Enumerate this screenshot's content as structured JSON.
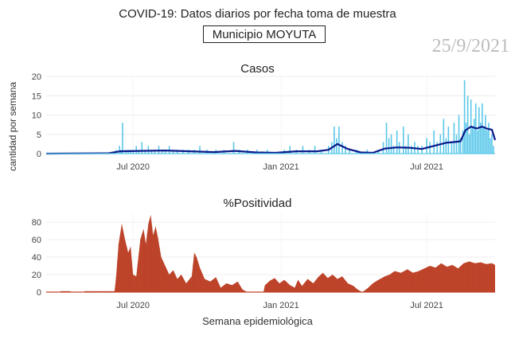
{
  "header": {
    "title": "COVID-19: Datos diarios por fecha toma de muestra",
    "subtitle": "Municipio MOYUTA",
    "date_stamp": "25/9/2021"
  },
  "axes": {
    "ylabel": "cantidad por semana",
    "xlabel": "Semana epidemiológica"
  },
  "colors": {
    "cases_bars": "#5bc8ea",
    "cases_line": "#0a1a8a",
    "positivity_fill": "#c0452b",
    "grid": "#ececec",
    "text": "#444444"
  },
  "chart_data": [
    {
      "type": "bar",
      "title": "Casos",
      "x_ticks": [
        "Jul 2020",
        "Jan 2021",
        "Jul 2021"
      ],
      "ylim": [
        0,
        20
      ],
      "y_ticks": [
        0,
        5,
        10,
        15,
        20
      ],
      "grid": "horizontal",
      "date_range": [
        "2020-03-15",
        "2021-09-24"
      ],
      "series": [
        {
          "kind": "bar",
          "color": "#5bc8ea",
          "points": [
            [
              "2020-06-10",
              1
            ],
            [
              "2020-06-14",
              2
            ],
            [
              "2020-06-16",
              1
            ],
            [
              "2020-06-18",
              8
            ],
            [
              "2020-06-22",
              1
            ],
            [
              "2020-06-25",
              1
            ],
            [
              "2020-06-28",
              1
            ],
            [
              "2020-07-01",
              1
            ],
            [
              "2020-07-05",
              2
            ],
            [
              "2020-07-08",
              1
            ],
            [
              "2020-07-12",
              3
            ],
            [
              "2020-07-16",
              1
            ],
            [
              "2020-07-20",
              2
            ],
            [
              "2020-07-24",
              1
            ],
            [
              "2020-07-28",
              1
            ],
            [
              "2020-08-02",
              2
            ],
            [
              "2020-08-06",
              1
            ],
            [
              "2020-08-10",
              1
            ],
            [
              "2020-08-15",
              2
            ],
            [
              "2020-08-20",
              1
            ],
            [
              "2020-08-25",
              1
            ],
            [
              "2020-09-01",
              1
            ],
            [
              "2020-09-08",
              1
            ],
            [
              "2020-09-15",
              1
            ],
            [
              "2020-09-22",
              2
            ],
            [
              "2020-10-01",
              1
            ],
            [
              "2020-10-12",
              1
            ],
            [
              "2020-10-22",
              1
            ],
            [
              "2020-11-03",
              3
            ],
            [
              "2020-11-10",
              1
            ],
            [
              "2020-11-20",
              1
            ],
            [
              "2020-12-02",
              1
            ],
            [
              "2020-12-15",
              1
            ],
            [
              "2021-01-05",
              1
            ],
            [
              "2021-01-12",
              2
            ],
            [
              "2021-01-20",
              1
            ],
            [
              "2021-01-28",
              2
            ],
            [
              "2021-02-05",
              1
            ],
            [
              "2021-02-12",
              2
            ],
            [
              "2021-02-20",
              1
            ],
            [
              "2021-03-01",
              2
            ],
            [
              "2021-03-05",
              3
            ],
            [
              "2021-03-08",
              7
            ],
            [
              "2021-03-11",
              4
            ],
            [
              "2021-03-14",
              7
            ],
            [
              "2021-03-18",
              3
            ],
            [
              "2021-03-22",
              2
            ],
            [
              "2021-03-27",
              1
            ],
            [
              "2021-04-05",
              1
            ],
            [
              "2021-04-18",
              1
            ],
            [
              "2021-05-02",
              1
            ],
            [
              "2021-05-08",
              3
            ],
            [
              "2021-05-12",
              8
            ],
            [
              "2021-05-15",
              4
            ],
            [
              "2021-05-18",
              5
            ],
            [
              "2021-05-21",
              2
            ],
            [
              "2021-05-25",
              6
            ],
            [
              "2021-05-28",
              3
            ],
            [
              "2021-06-02",
              7
            ],
            [
              "2021-06-05",
              2
            ],
            [
              "2021-06-08",
              5
            ],
            [
              "2021-06-12",
              2
            ],
            [
              "2021-06-16",
              3
            ],
            [
              "2021-06-20",
              2
            ],
            [
              "2021-06-25",
              2
            ],
            [
              "2021-07-01",
              4
            ],
            [
              "2021-07-05",
              3
            ],
            [
              "2021-07-10",
              6
            ],
            [
              "2021-07-14",
              3
            ],
            [
              "2021-07-18",
              5
            ],
            [
              "2021-07-22",
              9
            ],
            [
              "2021-07-25",
              4
            ],
            [
              "2021-07-28",
              7
            ],
            [
              "2021-08-01",
              3
            ],
            [
              "2021-08-04",
              8
            ],
            [
              "2021-08-07",
              5
            ],
            [
              "2021-08-10",
              10
            ],
            [
              "2021-08-12",
              4
            ],
            [
              "2021-08-15",
              6
            ],
            [
              "2021-08-17",
              19
            ],
            [
              "2021-08-19",
              8
            ],
            [
              "2021-08-21",
              15
            ],
            [
              "2021-08-23",
              5
            ],
            [
              "2021-08-25",
              14
            ],
            [
              "2021-08-27",
              7
            ],
            [
              "2021-08-29",
              9
            ],
            [
              "2021-08-31",
              13
            ],
            [
              "2021-09-02",
              6
            ],
            [
              "2021-09-04",
              12
            ],
            [
              "2021-09-06",
              8
            ],
            [
              "2021-09-08",
              13
            ],
            [
              "2021-09-10",
              7
            ],
            [
              "2021-09-12",
              10
            ],
            [
              "2021-09-14",
              6
            ],
            [
              "2021-09-16",
              8
            ],
            [
              "2021-09-18",
              4
            ],
            [
              "2021-09-20",
              5
            ],
            [
              "2021-09-22",
              2
            ]
          ]
        },
        {
          "kind": "line",
          "color": "#0a1a8a",
          "points": [
            [
              "2020-03-15",
              0
            ],
            [
              "2020-06-01",
              0.1
            ],
            [
              "2020-06-15",
              0.6
            ],
            [
              "2020-07-10",
              0.7
            ],
            [
              "2020-08-10",
              0.8
            ],
            [
              "2020-09-10",
              0.6
            ],
            [
              "2020-10-10",
              0.4
            ],
            [
              "2020-11-05",
              0.7
            ],
            [
              "2020-12-01",
              0.3
            ],
            [
              "2020-12-25",
              0.2
            ],
            [
              "2021-01-20",
              0.6
            ],
            [
              "2021-02-15",
              0.6
            ],
            [
              "2021-03-01",
              1.0
            ],
            [
              "2021-03-12",
              2.5
            ],
            [
              "2021-03-25",
              1.2
            ],
            [
              "2021-04-10",
              0.3
            ],
            [
              "2021-04-25",
              0.2
            ],
            [
              "2021-05-10",
              1.3
            ],
            [
              "2021-05-25",
              1.6
            ],
            [
              "2021-06-10",
              1.5
            ],
            [
              "2021-06-25",
              1.2
            ],
            [
              "2021-07-10",
              2.0
            ],
            [
              "2021-07-25",
              2.8
            ],
            [
              "2021-08-05",
              3.0
            ],
            [
              "2021-08-12",
              3.2
            ],
            [
              "2021-08-18",
              6.0
            ],
            [
              "2021-08-25",
              7.0
            ],
            [
              "2021-09-01",
              6.5
            ],
            [
              "2021-09-08",
              7.0
            ],
            [
              "2021-09-15",
              6.4
            ],
            [
              "2021-09-20",
              6.2
            ],
            [
              "2021-09-24",
              3.5
            ]
          ]
        }
      ]
    },
    {
      "type": "area",
      "title": "%Positividad",
      "x_ticks": [
        "Jul 2020",
        "Jan 2021",
        "Jul 2021"
      ],
      "ylim": [
        0,
        90
      ],
      "y_ticks": [
        0,
        20,
        40,
        60,
        80
      ],
      "grid": "horizontal",
      "date_range": [
        "2020-03-15",
        "2021-09-24"
      ],
      "series": [
        {
          "kind": "area",
          "color": "#c0452b",
          "points": [
            [
              "2020-03-15",
              0
            ],
            [
              "2020-04-01",
              0
            ],
            [
              "2020-04-02",
              1
            ],
            [
              "2020-04-14",
              1
            ],
            [
              "2020-04-15",
              0
            ],
            [
              "2020-05-01",
              0
            ],
            [
              "2020-05-02",
              1
            ],
            [
              "2020-06-08",
              1
            ],
            [
              "2020-06-10",
              18
            ],
            [
              "2020-06-13",
              55
            ],
            [
              "2020-06-17",
              78
            ],
            [
              "2020-06-21",
              60
            ],
            [
              "2020-06-25",
              45
            ],
            [
              "2020-06-28",
              52
            ],
            [
              "2020-07-01",
              20
            ],
            [
              "2020-07-05",
              18
            ],
            [
              "2020-07-10",
              60
            ],
            [
              "2020-07-14",
              72
            ],
            [
              "2020-07-17",
              55
            ],
            [
              "2020-07-20",
              78
            ],
            [
              "2020-07-23",
              88
            ],
            [
              "2020-07-26",
              65
            ],
            [
              "2020-07-29",
              75
            ],
            [
              "2020-08-01",
              62
            ],
            [
              "2020-08-05",
              40
            ],
            [
              "2020-08-10",
              30
            ],
            [
              "2020-08-15",
              20
            ],
            [
              "2020-08-20",
              25
            ],
            [
              "2020-08-25",
              15
            ],
            [
              "2020-08-30",
              20
            ],
            [
              "2020-09-05",
              10
            ],
            [
              "2020-09-12",
              18
            ],
            [
              "2020-09-15",
              45
            ],
            [
              "2020-09-18",
              40
            ],
            [
              "2020-09-22",
              28
            ],
            [
              "2020-09-28",
              15
            ],
            [
              "2020-10-05",
              12
            ],
            [
              "2020-10-12",
              17
            ],
            [
              "2020-10-18",
              5
            ],
            [
              "2020-10-25",
              10
            ],
            [
              "2020-11-01",
              8
            ],
            [
              "2020-11-08",
              12
            ],
            [
              "2020-11-14",
              3
            ],
            [
              "2020-11-20",
              0
            ],
            [
              "2020-12-10",
              0
            ],
            [
              "2020-12-12",
              8
            ],
            [
              "2020-12-18",
              13
            ],
            [
              "2020-12-24",
              16
            ],
            [
              "2020-12-30",
              10
            ],
            [
              "2021-01-05",
              14
            ],
            [
              "2021-01-12",
              8
            ],
            [
              "2021-01-18",
              5
            ],
            [
              "2021-01-22",
              14
            ],
            [
              "2021-01-27",
              7
            ],
            [
              "2021-02-03",
              15
            ],
            [
              "2021-02-10",
              10
            ],
            [
              "2021-02-16",
              17
            ],
            [
              "2021-02-22",
              22
            ],
            [
              "2021-02-28",
              16
            ],
            [
              "2021-03-06",
              20
            ],
            [
              "2021-03-12",
              15
            ],
            [
              "2021-03-18",
              18
            ],
            [
              "2021-03-25",
              10
            ],
            [
              "2021-04-01",
              7
            ],
            [
              "2021-04-06",
              3
            ],
            [
              "2021-04-12",
              0
            ],
            [
              "2021-04-18",
              4
            ],
            [
              "2021-04-25",
              10
            ],
            [
              "2021-05-02",
              14
            ],
            [
              "2021-05-10",
              18
            ],
            [
              "2021-05-16",
              20
            ],
            [
              "2021-05-22",
              24
            ],
            [
              "2021-05-30",
              22
            ],
            [
              "2021-06-07",
              26
            ],
            [
              "2021-06-14",
              22
            ],
            [
              "2021-06-21",
              24
            ],
            [
              "2021-06-28",
              27
            ],
            [
              "2021-07-05",
              30
            ],
            [
              "2021-07-12",
              28
            ],
            [
              "2021-07-19",
              33
            ],
            [
              "2021-07-26",
              29
            ],
            [
              "2021-08-02",
              31
            ],
            [
              "2021-08-09",
              27
            ],
            [
              "2021-08-16",
              33
            ],
            [
              "2021-08-23",
              35
            ],
            [
              "2021-08-30",
              33
            ],
            [
              "2021-09-06",
              34
            ],
            [
              "2021-09-13",
              32
            ],
            [
              "2021-09-20",
              33
            ],
            [
              "2021-09-24",
              31
            ]
          ]
        }
      ]
    }
  ]
}
